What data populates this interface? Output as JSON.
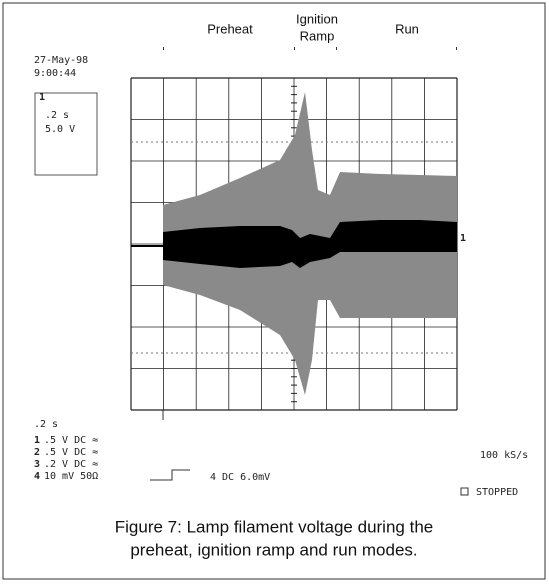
{
  "header": {
    "preheat": "Preheat",
    "ignition": "Ignition",
    "ramp": "Ramp",
    "run": "Run"
  },
  "scope": {
    "date": "27-May-98",
    "time": "9:00:44",
    "channel_marker": "1",
    "timebase": ".2 s",
    "volts": "5.0 V",
    "trace_marker": "1",
    "bottom_timebase": ".2  s",
    "channels": [
      {
        "id": "1",
        "setting": ".5  V  DC ≈"
      },
      {
        "id": "2",
        "setting": ".5  V  DC ≈"
      },
      {
        "id": "3",
        "setting": ".2  V  DC ≈"
      },
      {
        "id": "4",
        "setting": "10  mV  50Ω"
      }
    ],
    "trigger": "4  DC 6.0mV",
    "rate": "100 kS/s",
    "status": "STOPPED"
  },
  "caption": {
    "line1": "Figure 7: Lamp filament voltage during the",
    "line2": "preheat, ignition ramp and run modes."
  }
}
